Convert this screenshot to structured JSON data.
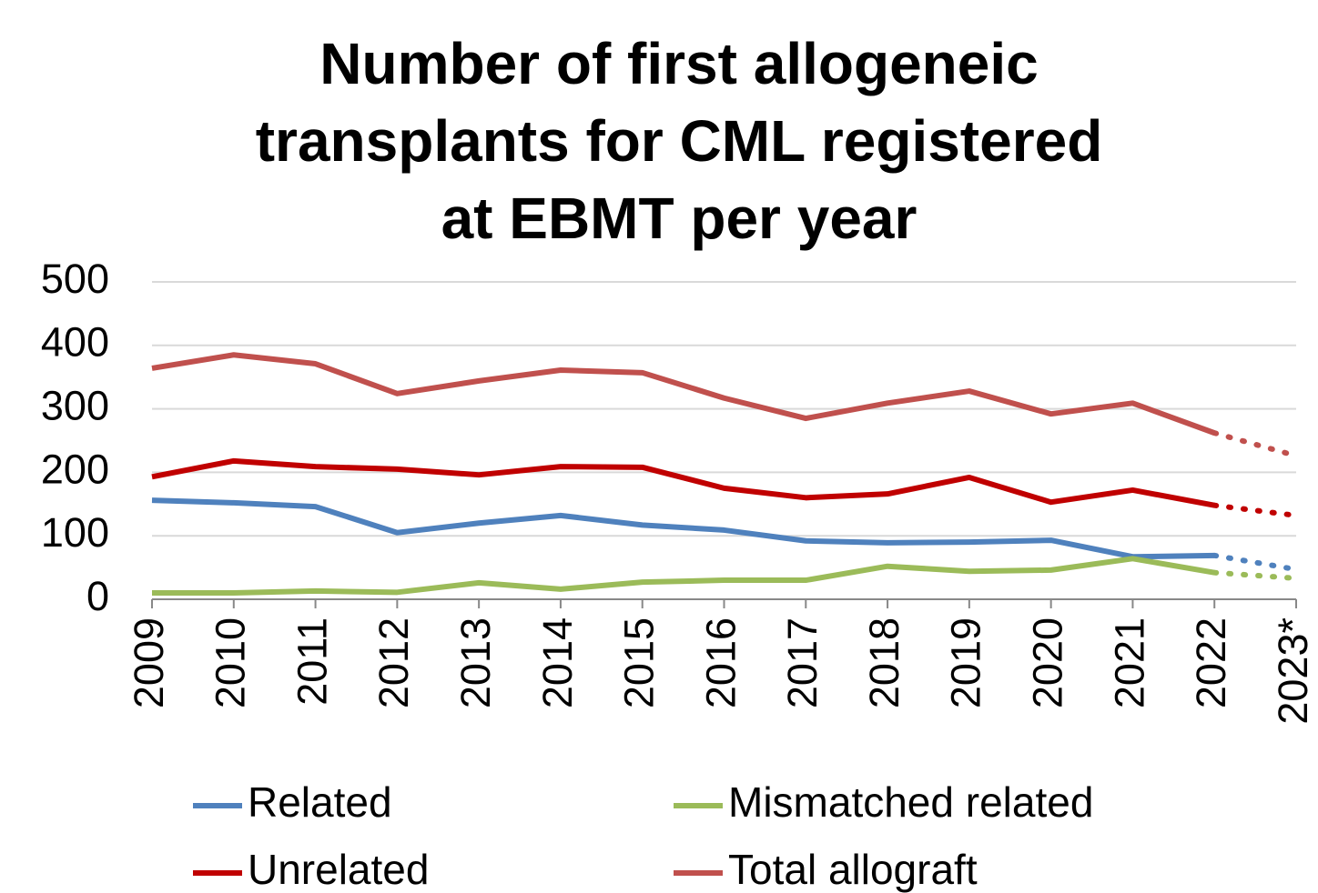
{
  "chart_data": {
    "type": "line",
    "title": [
      "Number of first allogeneic",
      "transplants for CML registered",
      "at EBMT per year"
    ],
    "categories": [
      "2009",
      "2010",
      "2011",
      "2012",
      "2013",
      "2014",
      "2015",
      "2016",
      "2017",
      "2018",
      "2019",
      "2020",
      "2021",
      "2022",
      "2023*"
    ],
    "series": [
      {
        "name": "Related",
        "color": "#4f81bd",
        "values": [
          156,
          152,
          146,
          105,
          120,
          132,
          117,
          109,
          92,
          89,
          90,
          93,
          67,
          69,
          47
        ]
      },
      {
        "name": "Mismatched related",
        "color": "#9bbb59",
        "values": [
          10,
          10,
          13,
          11,
          26,
          16,
          27,
          30,
          30,
          52,
          44,
          46,
          64,
          42,
          33
        ]
      },
      {
        "name": "Unrelated",
        "color": "#c00000",
        "values": [
          193,
          218,
          209,
          205,
          196,
          209,
          208,
          175,
          160,
          166,
          192,
          153,
          172,
          148,
          132
        ]
      },
      {
        "name": "Total allograft",
        "color": "#c0504d",
        "values": [
          364,
          385,
          371,
          324,
          344,
          361,
          357,
          317,
          285,
          309,
          328,
          292,
          309,
          262,
          226
        ]
      }
    ],
    "ylim": [
      0,
      500
    ],
    "yticks": [
      0,
      100,
      200,
      300,
      400,
      500
    ],
    "grid": true,
    "legend": "bottom"
  }
}
